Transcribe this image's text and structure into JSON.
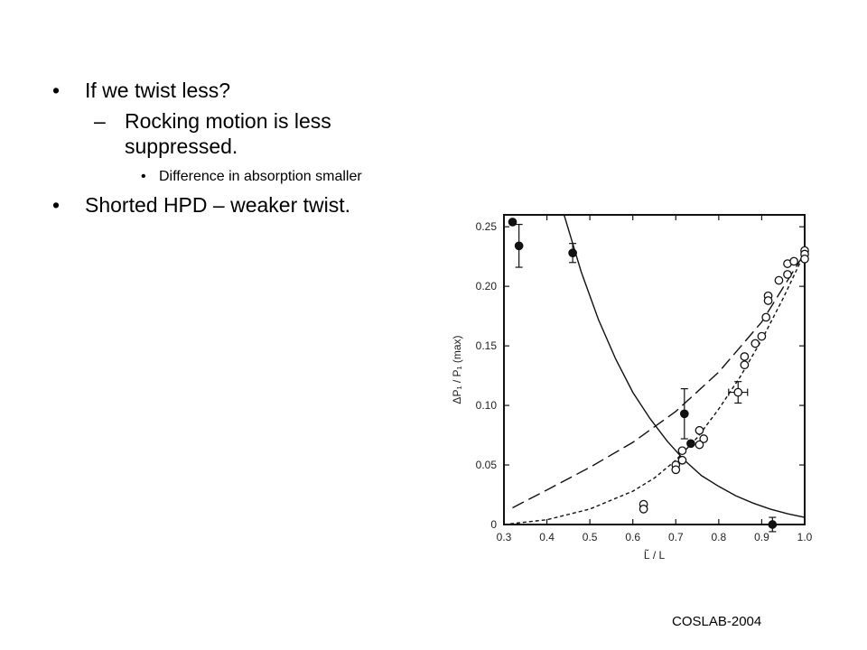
{
  "slide": {
    "bullets": [
      {
        "text": "If we twist less?"
      },
      {
        "text": "Rocking motion is less suppressed."
      },
      {
        "text": "Difference in absorption smaller"
      },
      {
        "text": "Shorted HPD – weaker twist."
      }
    ],
    "footer": "COSLAB-2004"
  },
  "chart_data": {
    "type": "scatter",
    "xlabel": "L̃ / L",
    "ylabel": "ΔP₁ / P₁ (max)",
    "xlim": [
      0.3,
      1.0
    ],
    "ylim": [
      0,
      0.26
    ],
    "xticks": [
      "0.3",
      "0.4",
      "0.5",
      "0.6",
      "0.7",
      "0.8",
      "0.9",
      "1.0"
    ],
    "yticks": [
      "0",
      "0.05",
      "0.10",
      "0.15",
      "0.20",
      "0.25"
    ],
    "grid": false,
    "series": [
      {
        "marker": "filled-circle",
        "points": [
          {
            "x": 0.32,
            "y": 0.254,
            "err": 0.0
          },
          {
            "x": 0.335,
            "y": 0.234,
            "err": 0.018
          },
          {
            "x": 0.46,
            "y": 0.228,
            "err": 0.008
          },
          {
            "x": 0.72,
            "y": 0.093,
            "err": 0.021
          },
          {
            "x": 0.735,
            "y": 0.068,
            "err": 0.0
          },
          {
            "x": 0.925,
            "y": 0.0,
            "err": 0.006
          }
        ]
      },
      {
        "marker": "open-circle",
        "points": [
          {
            "x": 0.625,
            "y": 0.017
          },
          {
            "x": 0.625,
            "y": 0.013
          },
          {
            "x": 0.7,
            "y": 0.05
          },
          {
            "x": 0.7,
            "y": 0.046
          },
          {
            "x": 0.715,
            "y": 0.062
          },
          {
            "x": 0.715,
            "y": 0.054
          },
          {
            "x": 0.755,
            "y": 0.079
          },
          {
            "x": 0.765,
            "y": 0.072
          },
          {
            "x": 0.755,
            "y": 0.067
          },
          {
            "x": 0.86,
            "y": 0.141
          },
          {
            "x": 0.86,
            "y": 0.134
          },
          {
            "x": 0.885,
            "y": 0.152
          },
          {
            "x": 0.9,
            "y": 0.158
          },
          {
            "x": 0.91,
            "y": 0.174
          },
          {
            "x": 0.915,
            "y": 0.192
          },
          {
            "x": 0.915,
            "y": 0.188
          },
          {
            "x": 0.94,
            "y": 0.205
          },
          {
            "x": 0.96,
            "y": 0.219
          },
          {
            "x": 0.96,
            "y": 0.21
          },
          {
            "x": 0.975,
            "y": 0.221
          },
          {
            "x": 1.0,
            "y": 0.23
          },
          {
            "x": 1.0,
            "y": 0.227
          },
          {
            "x": 1.0,
            "y": 0.223
          }
        ]
      },
      {
        "marker": "open-circle-xy-error",
        "points": [
          {
            "x": 0.845,
            "y": 0.111,
            "xerr": 0.022,
            "yerr": 0.009
          }
        ]
      },
      {
        "line": "solid",
        "x": [
          0.44,
          0.48,
          0.52,
          0.56,
          0.6,
          0.64,
          0.68,
          0.72,
          0.76,
          0.8,
          0.84,
          0.88,
          0.92,
          0.96,
          1.0
        ],
        "y": [
          0.26,
          0.212,
          0.172,
          0.139,
          0.111,
          0.089,
          0.07,
          0.054,
          0.041,
          0.032,
          0.024,
          0.018,
          0.013,
          0.009,
          0.006
        ]
      },
      {
        "line": "long-dash",
        "x": [
          0.32,
          0.4,
          0.5,
          0.6,
          0.7,
          0.8,
          0.9,
          1.0
        ],
        "y": [
          0.014,
          0.029,
          0.048,
          0.069,
          0.095,
          0.128,
          0.17,
          0.228
        ]
      },
      {
        "line": "short-dash",
        "x": [
          0.3,
          0.4,
          0.5,
          0.6,
          0.65,
          0.7,
          0.75,
          0.8,
          0.85,
          0.9,
          0.95,
          1.0
        ],
        "y": [
          0.0,
          0.004,
          0.013,
          0.028,
          0.039,
          0.054,
          0.073,
          0.097,
          0.124,
          0.155,
          0.19,
          0.228
        ]
      }
    ]
  }
}
